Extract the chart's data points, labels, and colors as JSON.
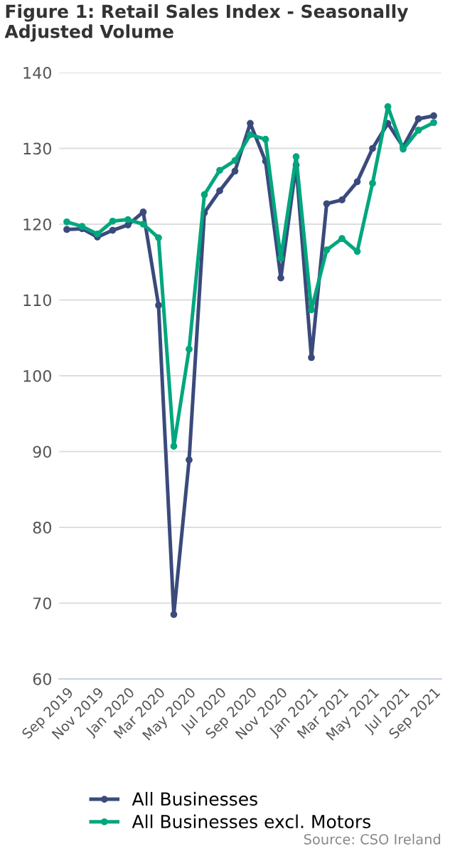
{
  "chart_data": {
    "type": "line",
    "title": "Figure 1: Retail Sales Index - Seasonally Adjusted Volume",
    "categories": [
      "Sep 2019",
      null,
      "Nov 2019",
      null,
      "Jan 2020",
      null,
      "Mar 2020",
      null,
      "May 2020",
      null,
      "Jul 2020",
      null,
      "Sep 2020",
      null,
      "Nov 2020",
      null,
      "Jan 2021",
      null,
      "Mar 2021",
      null,
      "May 2021",
      null,
      "Jul 2021",
      null,
      "Sep 2021"
    ],
    "series": [
      {
        "name": "All Businesses",
        "color": "#3b4a7c",
        "values": [
          119.3,
          119.4,
          118.3,
          119.2,
          119.9,
          121.6,
          109.3,
          68.5,
          88.9,
          121.5,
          124.4,
          127.0,
          133.3,
          128.3,
          112.9,
          127.8,
          102.4,
          122.7,
          123.2,
          125.6,
          130.0,
          133.3,
          130.2,
          133.9,
          134.3
        ]
      },
      {
        "name": "All Businesses excl. Motors",
        "color": "#00a67e",
        "values": [
          120.3,
          119.7,
          118.7,
          120.4,
          120.6,
          120.0,
          118.2,
          90.7,
          103.5,
          123.9,
          127.1,
          128.4,
          131.8,
          131.2,
          115.5,
          128.9,
          108.7,
          116.6,
          118.1,
          116.4,
          125.4,
          135.5,
          129.9,
          132.4,
          133.4
        ]
      }
    ],
    "ylim": [
      60,
      140
    ],
    "yticks": [
      60,
      70,
      80,
      90,
      100,
      110,
      120,
      130,
      140
    ],
    "grid": "y",
    "legend": "bottom",
    "marker": "circle",
    "line_style": "solid",
    "annotations": [
      "Source: CSO Ireland"
    ]
  }
}
